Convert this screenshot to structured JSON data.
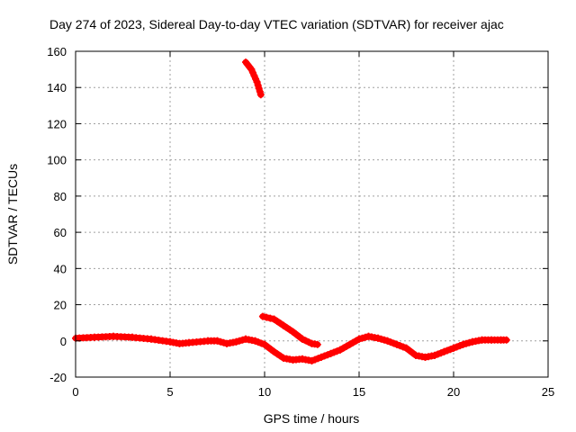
{
  "chart_data": {
    "type": "line",
    "title": "Day 274 of 2023, Sidereal Day-to-day VTEC variation (SDTVAR) for receiver ajac",
    "xlabel": "GPS time / hours",
    "ylabel": "SDTVAR / TECUs",
    "xlim": [
      0,
      25
    ],
    "ylim": [
      -20,
      160
    ],
    "xticks": [
      0,
      5,
      10,
      15,
      20,
      25
    ],
    "yticks": [
      -20,
      0,
      20,
      40,
      60,
      80,
      100,
      120,
      140,
      160
    ],
    "xtick_labels": [
      "0",
      "5",
      "10",
      "15",
      "20",
      "25"
    ],
    "ytick_labels": [
      "-20",
      "0",
      "20",
      "40",
      "60",
      "80",
      "100",
      "120",
      "140",
      "160"
    ],
    "grid": true,
    "series": [
      {
        "name": "main-baseline",
        "color": "#ff0000",
        "x": [
          0,
          1,
          2,
          3,
          4,
          5,
          5.5,
          6,
          7,
          7.5,
          8,
          8.5,
          9,
          9.5,
          10,
          10.5,
          11,
          11.5,
          12,
          12.5,
          13,
          13.5,
          14,
          14.5,
          15,
          15.5,
          16,
          16.5,
          17,
          17.5,
          18,
          18.5,
          19,
          19.5,
          20,
          20.5,
          21,
          21.5,
          22,
          22.5,
          22.8
        ],
        "y": [
          1.5,
          2,
          2.5,
          2,
          1,
          -0.5,
          -1.5,
          -1,
          0,
          0,
          -1.5,
          -0.5,
          1,
          0,
          -2,
          -6,
          -9.5,
          -10.5,
          -10,
          -11,
          -9,
          -7,
          -5,
          -2,
          1,
          2.5,
          1.5,
          0,
          -2,
          -4,
          -8,
          -9,
          -8,
          -6,
          -4,
          -2,
          -0.5,
          0.5,
          0.5,
          0.5,
          0.5
        ]
      },
      {
        "name": "upper-segment",
        "color": "#ff0000",
        "x": [
          9.0,
          9.3,
          9.6,
          9.8
        ],
        "y": [
          154,
          150,
          143,
          136
        ]
      },
      {
        "name": "secondary-branch",
        "color": "#ff0000",
        "x": [
          9.9,
          10.5,
          11.0,
          11.5,
          12.0,
          12.5,
          12.8
        ],
        "y": [
          13.5,
          12,
          8.5,
          5,
          1,
          -1.5,
          -2
        ]
      }
    ]
  }
}
